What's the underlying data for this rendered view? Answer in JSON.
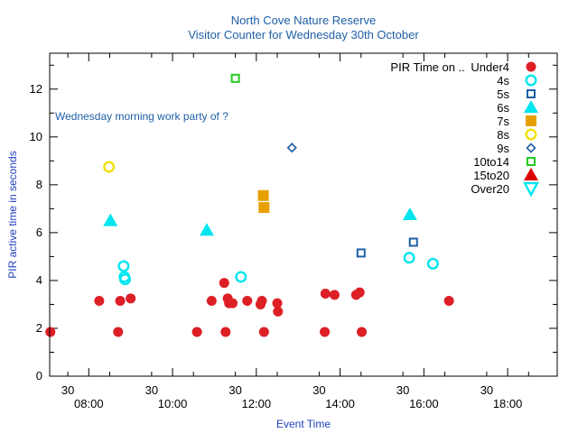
{
  "chart_data": {
    "type": "scatter",
    "title": "North Cove Nature Reserve",
    "subtitle": "Visitor Counter for Wednesday 30th October",
    "xlabel": "Event Time",
    "ylabel": "PIR active time in seconds",
    "annotation": "Wednesday morning work party of ?",
    "legend_title": "PIR Time on ..",
    "legend_position": "top-right",
    "grid": false,
    "xlim": [
      "07:04",
      "19:11"
    ],
    "ylim": [
      0,
      13.5
    ],
    "x_major_ticks": [
      "08:00",
      "10:00",
      "12:00",
      "14:00",
      "16:00",
      "18:00"
    ],
    "x_major_tick_labels": [
      "08:00",
      "10:00",
      "12:00",
      "14:00",
      "16:00",
      "18:00"
    ],
    "x_minor_ticks": [
      "07:30",
      "08:30",
      "09:30",
      "10:30",
      "11:30",
      "12:30",
      "13:30",
      "14:30",
      "15:30",
      "16:30",
      "17:30",
      "18:30"
    ],
    "x_minor_tick_labels": [
      "30",
      "30",
      "30",
      "30",
      "30",
      "30"
    ],
    "x_minor_label_at": [
      "07:30",
      "09:30",
      "11:30",
      "13:30",
      "15:30",
      "17:30"
    ],
    "y_ticks": [
      0,
      2,
      4,
      6,
      8,
      10,
      12
    ],
    "y_tick_labels": [
      "0",
      "2",
      "4",
      "6",
      "8",
      "10",
      "12"
    ],
    "series": [
      {
        "name": "Under4",
        "marker": "circle-filled",
        "color": "#dd1f26",
        "points": [
          [
            "07:05",
            1.85
          ],
          [
            "08:15",
            3.15
          ],
          [
            "08:42",
            1.85
          ],
          [
            "08:45",
            3.15
          ],
          [
            "09:00",
            3.25
          ],
          [
            "10:35",
            1.85
          ],
          [
            "10:56",
            3.15
          ],
          [
            "11:16",
            1.85
          ],
          [
            "11:14",
            3.9
          ],
          [
            "11:19",
            3.25
          ],
          [
            "11:21",
            3.05
          ],
          [
            "11:26",
            3.05
          ],
          [
            "11:47",
            3.15
          ],
          [
            "12:06",
            3.0
          ],
          [
            "12:08",
            3.15
          ],
          [
            "12:11",
            1.85
          ],
          [
            "12:30",
            3.05
          ],
          [
            "12:31",
            2.7
          ],
          [
            "13:38",
            1.85
          ],
          [
            "13:39",
            3.45
          ],
          [
            "13:52",
            3.4
          ],
          [
            "14:23",
            3.4
          ],
          [
            "14:28",
            3.5
          ],
          [
            "14:31",
            1.85
          ],
          [
            "16:36",
            3.15
          ]
        ]
      },
      {
        "name": "4s",
        "marker": "circle-open",
        "color": "#00e5ee",
        "points": [
          [
            "08:50",
            4.6
          ],
          [
            "08:51",
            4.15
          ],
          [
            "08:52",
            4.05
          ],
          [
            "11:38",
            4.15
          ],
          [
            "15:39",
            4.95
          ],
          [
            "16:13",
            4.7
          ]
        ]
      },
      {
        "name": "5s",
        "marker": "square-open",
        "color": "#1f5fa6",
        "points": [
          [
            "14:30",
            5.15
          ],
          [
            "15:45",
            5.6
          ]
        ]
      },
      {
        "name": "6s",
        "marker": "triangle-filled",
        "color": "#00e5ee",
        "points": [
          [
            "08:31",
            6.5
          ],
          [
            "10:49",
            6.1
          ],
          [
            "15:40",
            6.75
          ]
        ]
      },
      {
        "name": "7s",
        "marker": "square-filled",
        "color": "#e6a000",
        "points": [
          [
            "12:10",
            7.55
          ],
          [
            "12:11",
            7.05
          ]
        ]
      },
      {
        "name": "8s",
        "marker": "circle-open",
        "color": "#f0e000",
        "points": [
          [
            "08:29",
            8.75
          ]
        ]
      },
      {
        "name": "9s",
        "marker": "diamond-open",
        "color": "#1f5fa6",
        "points": [
          [
            "12:51",
            9.55
          ]
        ]
      },
      {
        "name": "10to14",
        "marker": "square-open",
        "color": "#22cc22",
        "points": [
          [
            "11:30",
            12.45
          ]
        ]
      },
      {
        "name": "15to20",
        "marker": "triangle-filled",
        "color": "#dd0000",
        "points": []
      },
      {
        "name": "Over20",
        "marker": "triangle-down-open",
        "color": "#00e5ee",
        "points": []
      }
    ]
  }
}
